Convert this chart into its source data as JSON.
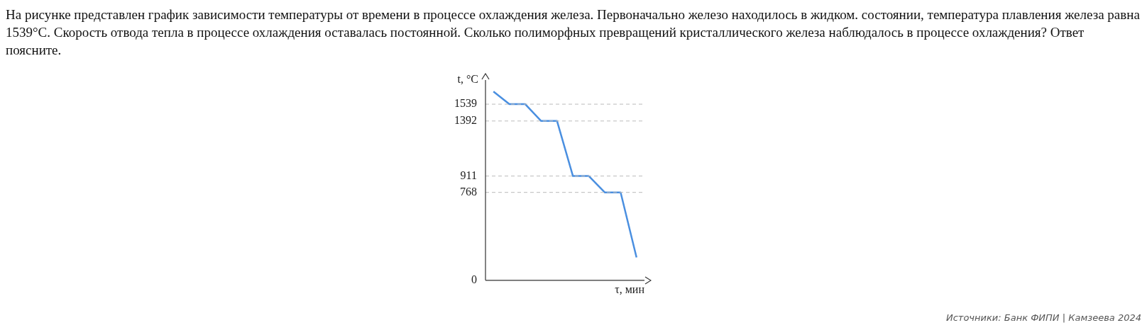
{
  "chart_data": {
    "type": "line",
    "title": "На рисунке представлен график зависимости температуры от времени в процессе охлаждения железа. Первоначально железо находилось в жидком. состоянии, температура плавления железа равна 1539°C. Скорость отвода тепла в процессе охлаждения оставалась постоянной. Сколько полиморфных превращений кристаллического железа наблюдалось в процессе охлаждения? Ответ поясните.",
    "xlabel": "τ, мин",
    "ylabel": "t, °C",
    "categories": [
      null,
      null,
      null,
      null,
      null,
      null,
      null,
      null,
      null,
      null
    ],
    "series": [
      {
        "color": "#4a8fe0",
        "values": [
          1650,
          1539,
          1539,
          1392,
          1392,
          911,
          911,
          768,
          768,
          200
        ]
      }
    ],
    "ylim": [
      0,
      1750
    ],
    "yticks": [
      0,
      768,
      911,
      1392,
      1539
    ],
    "tick_labels": "y",
    "grid": false,
    "legend": false,
    "marker": "none",
    "line_style": "solid",
    "ref_lines": [
      {
        "axis": "y",
        "value": 1539,
        "color": "#bbbbbb",
        "line_style": "dashed"
      },
      {
        "axis": "y",
        "value": 1392,
        "color": "#bbbbbb",
        "line_style": "dashed"
      },
      {
        "axis": "y",
        "value": 911,
        "color": "#bbbbbb",
        "line_style": "dashed"
      },
      {
        "axis": "y",
        "value": 768,
        "color": "#bbbbbb",
        "line_style": "dashed"
      }
    ],
    "annotations": [
      "Источники: Банк ФИПИ | Камзеева 2024"
    ]
  }
}
